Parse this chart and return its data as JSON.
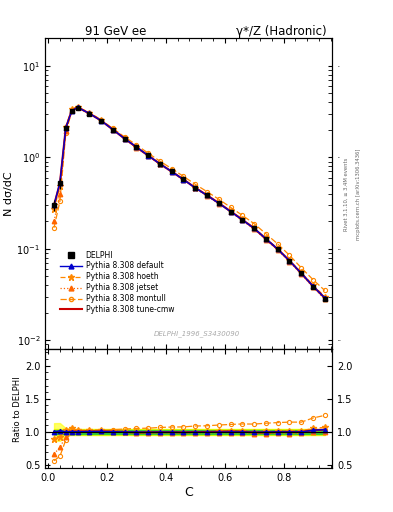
{
  "title_left": "91 GeV ee",
  "title_right": "γ*/Z (Hadronic)",
  "ylabel_main": "N dσ/dC",
  "ylabel_ratio": "Ratio to DELPHI",
  "xlabel": "C",
  "watermark": "DELPHI_1996_S3430090",
  "right_label1": "Rivet 3.1.10, ≥ 3.4M events",
  "right_label2": "mcplots.cern.ch [arXiv:1306.3436]",
  "C_data": [
    0.02,
    0.04,
    0.06,
    0.08,
    0.1,
    0.14,
    0.18,
    0.22,
    0.26,
    0.3,
    0.34,
    0.38,
    0.42,
    0.46,
    0.5,
    0.54,
    0.58,
    0.62,
    0.66,
    0.7,
    0.74,
    0.78,
    0.82,
    0.86,
    0.9,
    0.94
  ],
  "delphi_y": [
    0.3,
    0.52,
    2.1,
    3.2,
    3.5,
    3.0,
    2.5,
    2.0,
    1.6,
    1.3,
    1.05,
    0.85,
    0.7,
    0.575,
    0.465,
    0.385,
    0.315,
    0.255,
    0.207,
    0.168,
    0.129,
    0.099,
    0.074,
    0.054,
    0.038,
    0.028
  ],
  "delphi_err": [
    0.04,
    0.07,
    0.12,
    0.12,
    0.12,
    0.1,
    0.08,
    0.06,
    0.05,
    0.04,
    0.03,
    0.025,
    0.02,
    0.016,
    0.013,
    0.011,
    0.009,
    0.007,
    0.006,
    0.005,
    0.004,
    0.003,
    0.0025,
    0.002,
    0.0015,
    0.001
  ],
  "pythia_default_y": [
    0.3,
    0.53,
    2.1,
    3.22,
    3.52,
    3.02,
    2.52,
    2.01,
    1.6,
    1.3,
    1.045,
    0.848,
    0.698,
    0.571,
    0.463,
    0.383,
    0.314,
    0.255,
    0.207,
    0.167,
    0.129,
    0.099,
    0.074,
    0.054,
    0.039,
    0.029
  ],
  "pythia_hoeth_y": [
    0.27,
    0.48,
    2.15,
    3.38,
    3.58,
    3.08,
    2.58,
    2.04,
    1.61,
    1.3,
    1.05,
    0.853,
    0.703,
    0.575,
    0.467,
    0.387,
    0.318,
    0.259,
    0.21,
    0.169,
    0.13,
    0.1,
    0.075,
    0.055,
    0.04,
    0.03
  ],
  "pythia_jetset_y": [
    0.2,
    0.4,
    1.95,
    3.28,
    3.53,
    3.03,
    2.53,
    2.01,
    1.59,
    1.28,
    1.035,
    0.84,
    0.69,
    0.565,
    0.459,
    0.379,
    0.311,
    0.252,
    0.204,
    0.164,
    0.126,
    0.097,
    0.072,
    0.053,
    0.038,
    0.028
  ],
  "pythia_montull_y": [
    0.17,
    0.33,
    1.85,
    3.18,
    3.48,
    3.02,
    2.54,
    2.07,
    1.67,
    1.37,
    1.11,
    0.908,
    0.752,
    0.619,
    0.507,
    0.421,
    0.348,
    0.284,
    0.232,
    0.188,
    0.146,
    0.113,
    0.085,
    0.062,
    0.046,
    0.035
  ],
  "pythia_tunecmw_y": [
    0.3,
    0.52,
    2.1,
    3.22,
    3.52,
    3.02,
    2.52,
    2.01,
    1.6,
    1.29,
    1.045,
    0.848,
    0.698,
    0.572,
    0.465,
    0.385,
    0.316,
    0.257,
    0.208,
    0.167,
    0.128,
    0.099,
    0.074,
    0.054,
    0.039,
    0.029
  ],
  "color_delphi": "#000000",
  "color_default": "#0000cc",
  "color_hoeth": "#ff8800",
  "color_jetset": "#ff6600",
  "color_montull": "#ff8800",
  "color_tunecmw": "#cc0000",
  "band_yellow": [
    0.95,
    1.05
  ],
  "band_green": [
    0.975,
    1.025
  ],
  "ylim_main": [
    0.008,
    20.0
  ],
  "ylim_ratio": [
    0.45,
    2.25
  ],
  "xlim": [
    -0.01,
    0.965
  ],
  "xticks": [
    0.0,
    0.2,
    0.4,
    0.6,
    0.8
  ],
  "ratio_yticks": [
    0.5,
    1.0,
    1.5,
    2.0
  ]
}
